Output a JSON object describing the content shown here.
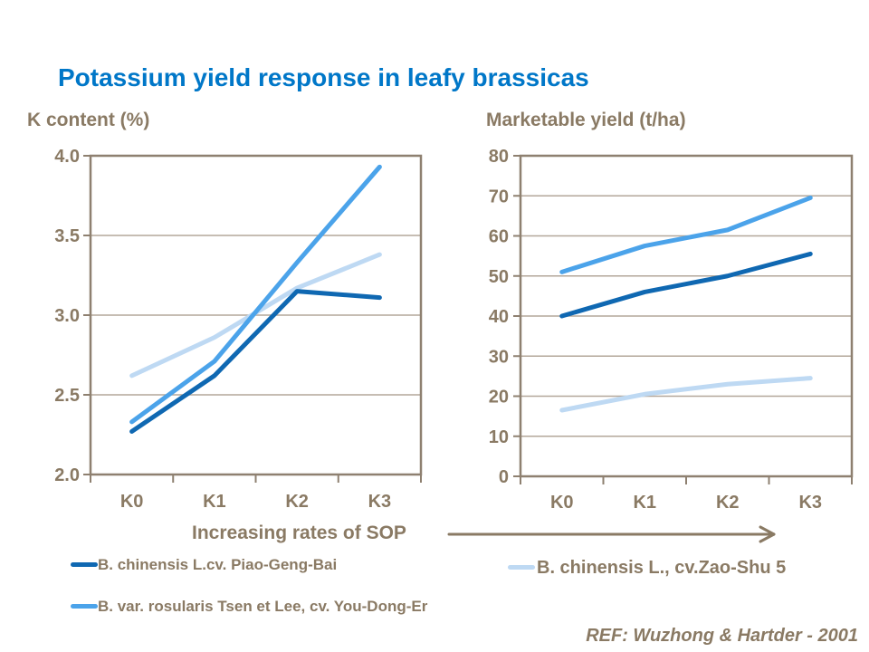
{
  "title": "Potassium yield response in leafy brassicas",
  "xaxis_label": "Increasing rates of SOP",
  "reference": "REF: Wuzhong & Hartder - 2001",
  "colors": {
    "title": "#0077C8",
    "axis_text": "#8A7A64",
    "axis_line": "#8E8070",
    "gridline": "#B3A79A",
    "series_dark": "#0F68B2",
    "series_medium": "#4BA3EA",
    "series_light": "#BED9F3"
  },
  "chart_data": [
    {
      "type": "line",
      "title": "K content (%)",
      "categories": [
        "K0",
        "K1",
        "K2",
        "K3"
      ],
      "ylim": [
        2.0,
        4.0
      ],
      "yticks": [
        "2.0",
        "2.5",
        "3.0",
        "3.5",
        "4.0"
      ],
      "grid": true,
      "xlabel": "Increasing rates of SOP",
      "ylabel": "K content (%)",
      "series": [
        {
          "name": "B. chinensis L.cv. Piao-Geng-Bai",
          "color_key": "series_dark",
          "values": [
            2.27,
            2.62,
            3.15,
            3.11
          ]
        },
        {
          "name": "B. var. rosularis Tsen et Lee, cv. You-Dong-Er",
          "color_key": "series_medium",
          "values": [
            2.33,
            2.71,
            3.33,
            3.93
          ]
        },
        {
          "name": "B. chinensis L., cv.Zao-Shu 5",
          "color_key": "series_light",
          "values": [
            2.62,
            2.86,
            3.17,
            3.38
          ]
        }
      ]
    },
    {
      "type": "line",
      "title": "Marketable yield (t/ha)",
      "categories": [
        "K0",
        "K1",
        "K2",
        "K3"
      ],
      "ylim": [
        0,
        80
      ],
      "yticks": [
        "0",
        "10",
        "20",
        "30",
        "40",
        "50",
        "60",
        "70",
        "80"
      ],
      "grid": true,
      "xlabel": "Increasing rates of SOP",
      "ylabel": "Marketable yield (t/ha)",
      "series": [
        {
          "name": "B. chinensis L.cv. Piao-Geng-Bai",
          "color_key": "series_dark",
          "values": [
            40,
            46,
            50,
            55.5
          ]
        },
        {
          "name": "B. var. rosularis Tsen et Lee, cv. You-Dong-Er",
          "color_key": "series_medium",
          "values": [
            51,
            57.5,
            61.5,
            69.5
          ]
        },
        {
          "name": "B. chinensis L., cv.Zao-Shu 5",
          "color_key": "series_light",
          "values": [
            16.5,
            20.5,
            23,
            24.5
          ]
        }
      ]
    }
  ],
  "legend": {
    "left_items": [
      {
        "label": "B. chinensis L.cv. Piao-Geng-Bai",
        "color_key": "series_dark"
      },
      {
        "label": "B. var. rosularis Tsen et Lee, cv. You-Dong-Er",
        "color_key": "series_medium"
      }
    ],
    "right_item": {
      "label": "B. chinensis L., cv.Zao-Shu 5",
      "color_key": "series_light"
    }
  }
}
